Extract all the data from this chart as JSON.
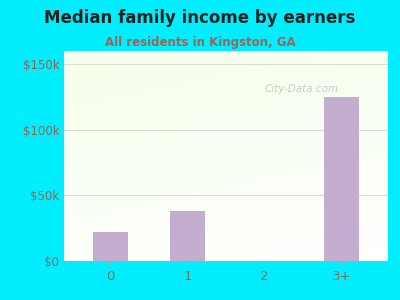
{
  "title": "Median family income by earners",
  "subtitle": "All residents in Kingston, GA",
  "categories": [
    "0",
    "1",
    "2",
    "3+"
  ],
  "values": [
    22000,
    38000,
    0,
    125000
  ],
  "bar_color": "#c4aed0",
  "background_color": "#00eeff",
  "yticks": [
    0,
    50000,
    100000,
    150000
  ],
  "ytick_labels": [
    "$0",
    "$50k",
    "$100k",
    "$150k"
  ],
  "ylim": [
    0,
    160000
  ],
  "title_color": "#222222",
  "subtitle_color": "#996655",
  "axis_label_color": "#886655",
  "grid_color": "#ddddcc",
  "watermark": "City-Data.com",
  "watermark_color": "#aaaaaa"
}
